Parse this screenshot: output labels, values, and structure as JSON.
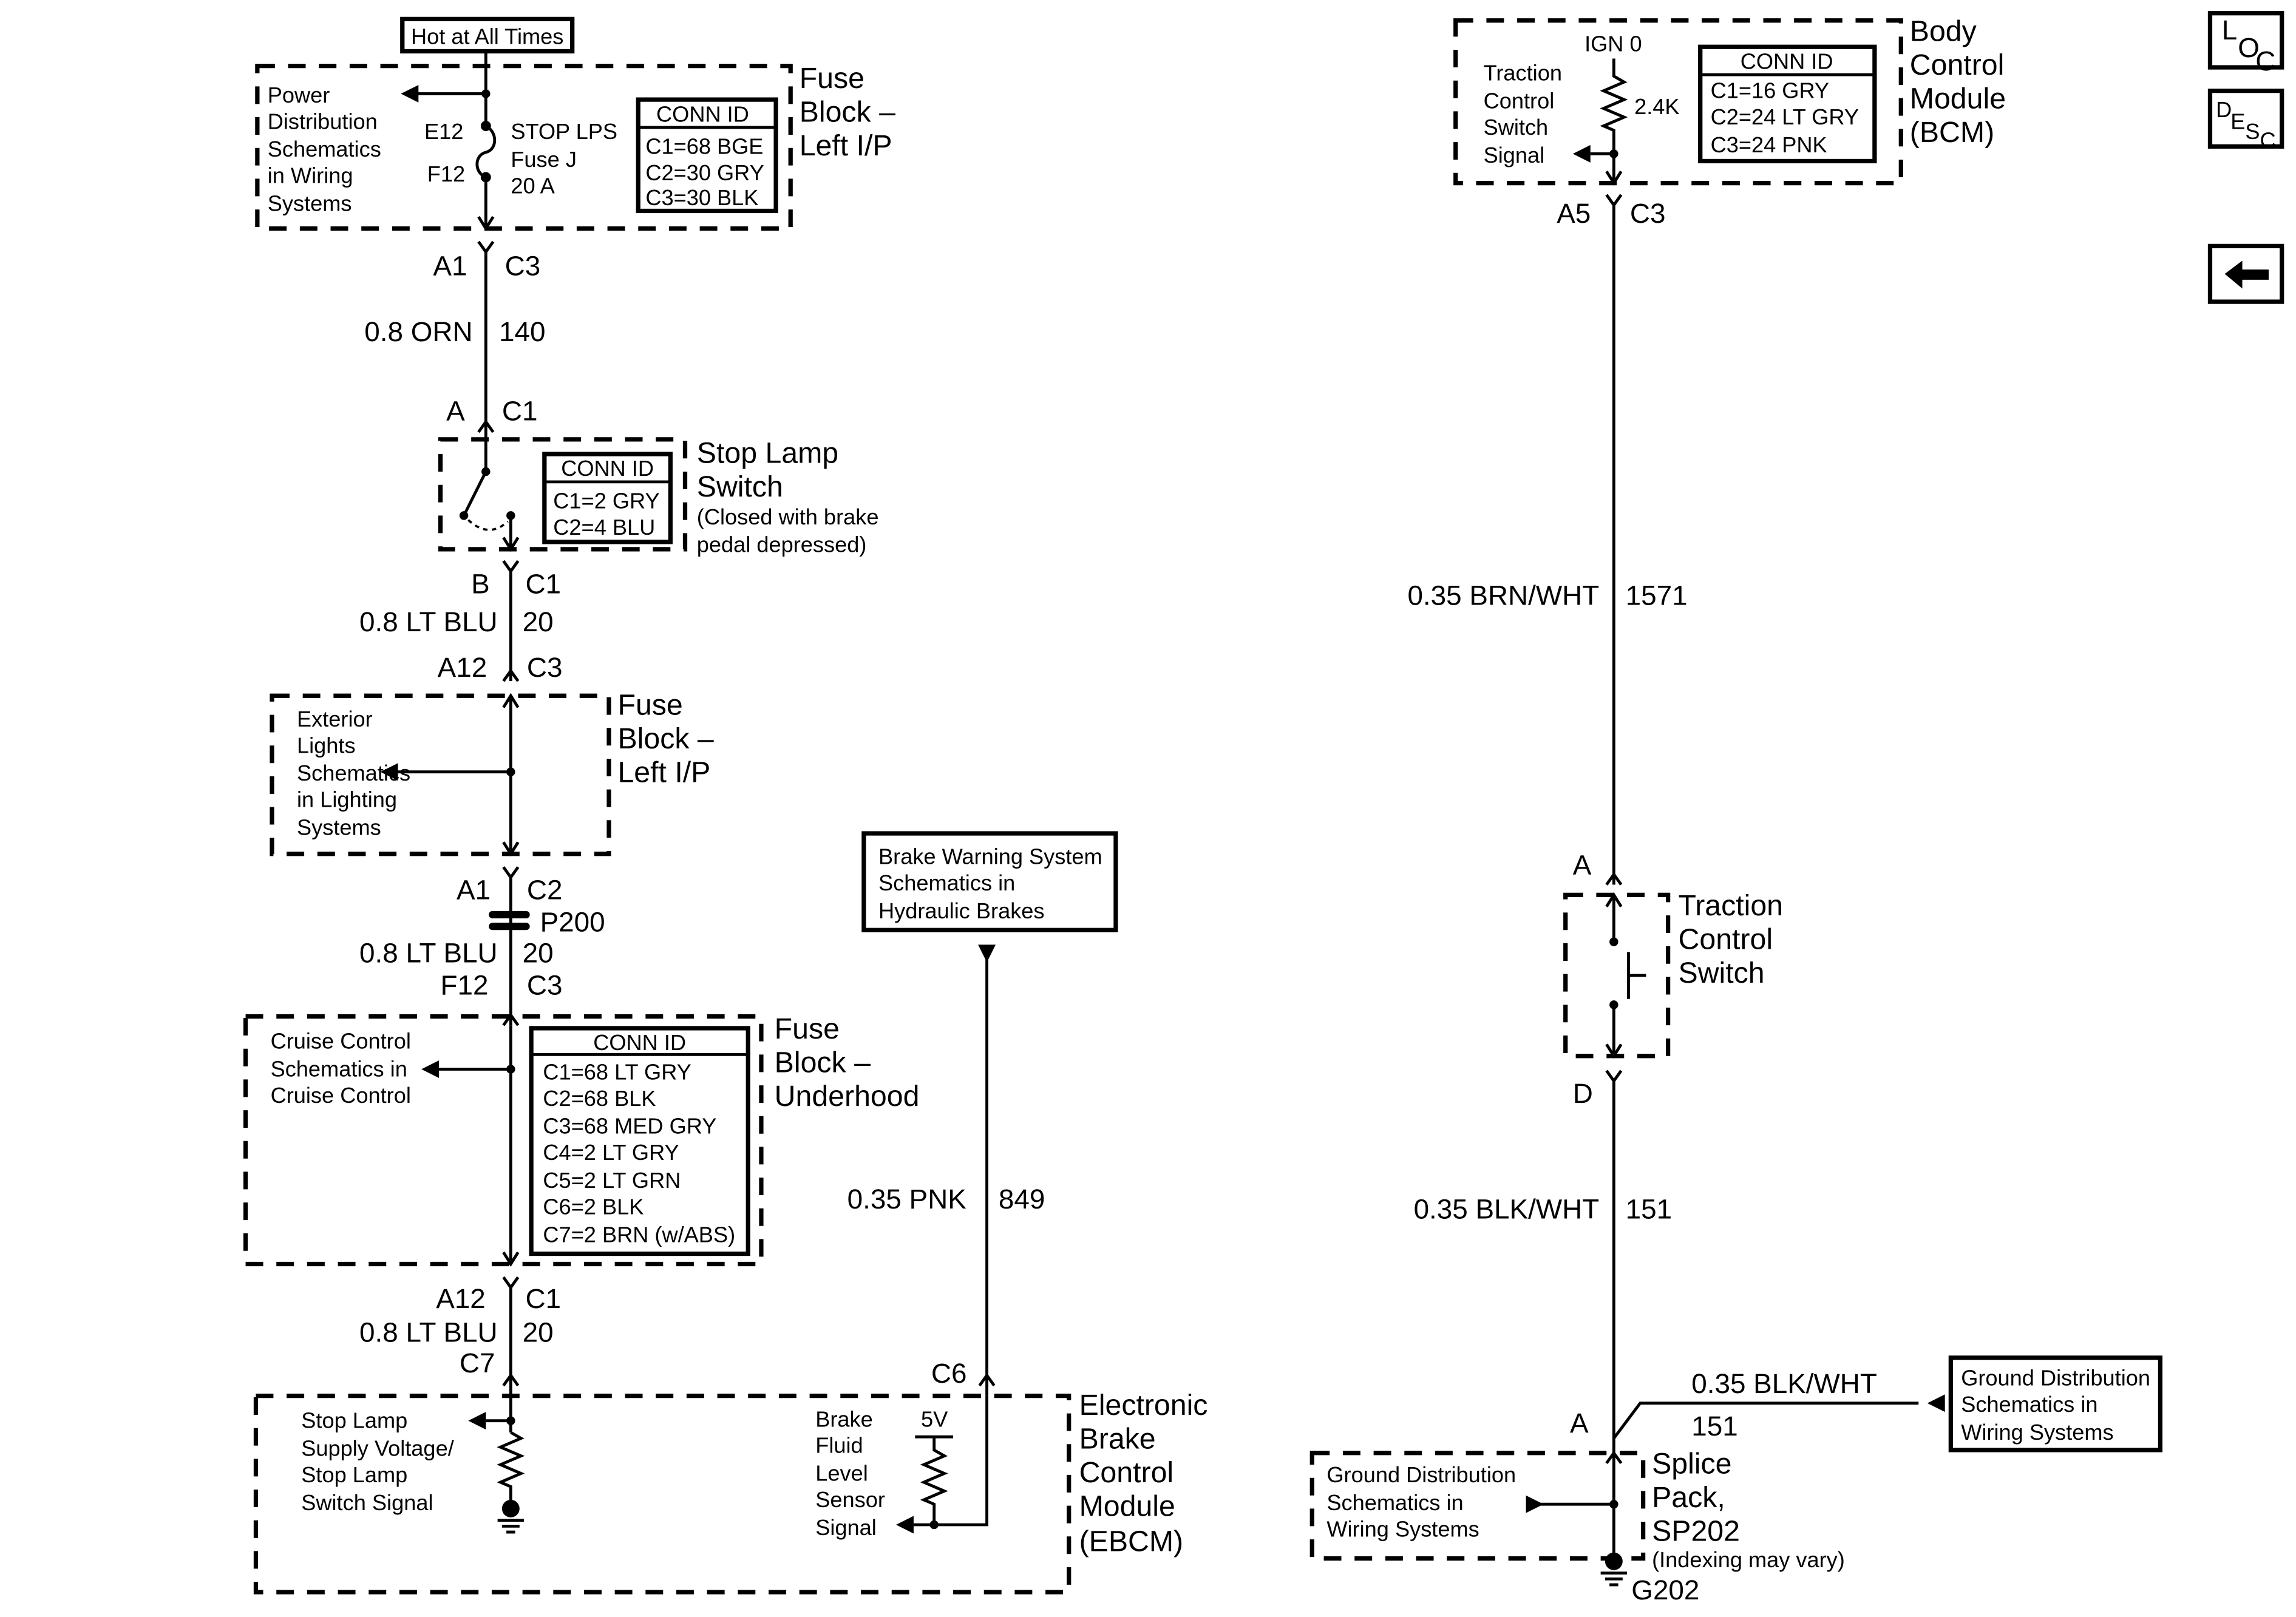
{
  "nav": {
    "loc_label": [
      "L",
      "O",
      "C"
    ],
    "desc_label": [
      "D",
      "E",
      "S",
      "C"
    ],
    "back_icon": "arrow-left-icon"
  },
  "hot_at_all_times": "Hot at All Times",
  "fuse_block_lip": {
    "title": [
      "Fuse",
      "Block –",
      "Left I/P"
    ],
    "power_ref": [
      "Power",
      "Distribution",
      "Schematics",
      "in Wiring",
      "Systems"
    ],
    "fuse_in": "E12",
    "fuse_out": "F12",
    "fuse_name": [
      "STOP LPS",
      "Fuse J",
      "20 A"
    ],
    "conn_id": {
      "header": "CONN ID",
      "rows": [
        "C1=68 BGE",
        "C2=30 GRY",
        "C3=30 BLK"
      ]
    }
  },
  "wire_140": {
    "conn_top": [
      "A1",
      "C3"
    ],
    "label": "0.8 ORN",
    "circuit": "140",
    "conn_bottom": [
      "A",
      "C1"
    ]
  },
  "stop_lamp_switch": {
    "title": [
      "Stop Lamp",
      "Switch"
    ],
    "note": [
      "(Closed with brake",
      "pedal depressed)"
    ],
    "conn_id": {
      "header": "CONN ID",
      "rows": [
        "C1=2 GRY",
        "C2=4 BLU"
      ]
    }
  },
  "wire_20a": {
    "conn_top": [
      "B",
      "C1"
    ],
    "label": "0.8 LT BLU",
    "circuit": "20",
    "conn_bottom": [
      "A12",
      "C3"
    ]
  },
  "fuse_block_lip2": {
    "title": [
      "Fuse",
      "Block –",
      "Left I/P"
    ],
    "ref": [
      "Exterior",
      "Lights",
      "Schematics",
      "in Lighting",
      "Systems"
    ]
  },
  "wire_20b": {
    "conn_top": [
      "A1",
      "C2"
    ],
    "inline": "P200",
    "label": "0.8 LT BLU",
    "circuit": "20",
    "conn_bottom": [
      "F12",
      "C3"
    ]
  },
  "fuse_block_underhood": {
    "title": [
      "Fuse",
      "Block –",
      "Underhood"
    ],
    "ref": [
      "Cruise Control",
      "Schematics in",
      "Cruise Control"
    ],
    "conn_id": {
      "header": "CONN ID",
      "rows": [
        "C1=68 LT GRY",
        "C2=68 BLK",
        "C3=68 MED GRY",
        "C4=2 LT GRY",
        "C5=2 LT GRN",
        "C6=2 BLK",
        "C7=2 BRN (w/ABS)"
      ]
    }
  },
  "wire_20c": {
    "conn_top": [
      "A12",
      "C1"
    ],
    "label": "0.8 LT BLU",
    "circuit": "20",
    "conn_bottom": "C7"
  },
  "brake_warning": {
    "ref": [
      "Brake Warning System",
      "Schematics in",
      "Hydraulic Brakes"
    ],
    "label": "0.35 PNK",
    "circuit": "849",
    "conn": "C6"
  },
  "ebcm": {
    "title": [
      "Electronic",
      "Brake",
      "Control",
      "Module",
      "(EBCM)"
    ],
    "stop_lamp_signal": [
      "Stop Lamp",
      "Supply Voltage/",
      "Stop Lamp",
      "Switch Signal"
    ],
    "fluid_signal": [
      "Brake",
      "Fluid",
      "Level",
      "Sensor",
      "Signal"
    ],
    "voltage": "5V"
  },
  "bcm": {
    "title": [
      "Body",
      "Control",
      "Module",
      "(BCM)"
    ],
    "ign": "IGN 0",
    "resistor": "2.4K",
    "signal": [
      "Traction",
      "Control",
      "Switch",
      "Signal"
    ],
    "conn_id": {
      "header": "CONN ID",
      "rows": [
        "C1=16 GRY",
        "C2=24 LT GRY",
        "C3=24 PNK"
      ]
    }
  },
  "wire_1571": {
    "conn_top": [
      "A5",
      "C3"
    ],
    "label": "0.35 BRN/WHT",
    "circuit": "1571",
    "conn_bottom": "A"
  },
  "traction_switch": {
    "title": [
      "Traction",
      "Control",
      "Switch"
    ],
    "conn_bottom": "D"
  },
  "wire_151": {
    "label": "0.35 BLK/WHT",
    "circuit": "151",
    "conn": "A"
  },
  "ground_branch": {
    "label": "0.35 BLK/WHT",
    "circuit": "151",
    "ref": [
      "Ground Distribution",
      "Schematics in",
      "Wiring Systems"
    ]
  },
  "splice_pack": {
    "title": [
      "Splice",
      "Pack,",
      "SP202"
    ],
    "note": "(Indexing may vary)",
    "ref": [
      "Ground Distribution",
      "Schematics in",
      "Wiring Systems"
    ],
    "ground": "G202"
  }
}
